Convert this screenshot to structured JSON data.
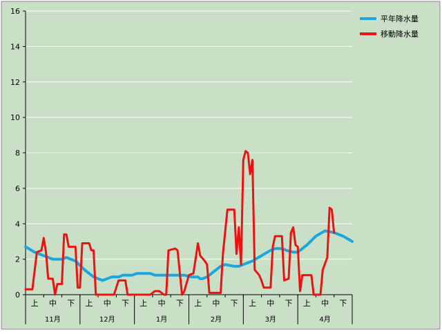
{
  "chart_data": {
    "type": "line",
    "ylim": [
      0,
      16
    ],
    "yticks": [
      "0",
      "2",
      "4",
      "6",
      "8",
      "10",
      "12",
      "14",
      "16"
    ],
    "grid": true,
    "legend_position": "top-right",
    "colors": {
      "background": "#c9dfc6",
      "grid": "#ffffff",
      "frame": "#8a8a8a"
    },
    "sub_ticks": [
      "上",
      "中",
      "下",
      "上",
      "中",
      "下",
      "上",
      "中",
      "下",
      "上",
      "中",
      "下",
      "上",
      "中",
      "下",
      "上",
      "中",
      "下"
    ],
    "month_labels": [
      "11月",
      "12月",
      "1月",
      "2月",
      "3月",
      "4月"
    ],
    "series": [
      {
        "name": "平年降水量",
        "color": "#1aa7e0",
        "points": [
          [
            0,
            2.7
          ],
          [
            4,
            2.4
          ],
          [
            8,
            2.2
          ],
          [
            12,
            2.0
          ],
          [
            16,
            2.0
          ],
          [
            18,
            2.1
          ],
          [
            22,
            1.9
          ],
          [
            26,
            1.4
          ],
          [
            30,
            1.0
          ],
          [
            32,
            0.9
          ],
          [
            34,
            0.8
          ],
          [
            36,
            0.9
          ],
          [
            38,
            1.0
          ],
          [
            41,
            1.0
          ],
          [
            43,
            1.1
          ],
          [
            47,
            1.1
          ],
          [
            49,
            1.2
          ],
          [
            55,
            1.2
          ],
          [
            57,
            1.1
          ],
          [
            65,
            1.1
          ],
          [
            70,
            1.1
          ],
          [
            73,
            1.0
          ],
          [
            76,
            1.0
          ],
          [
            77,
            0.9
          ],
          [
            78,
            0.9
          ],
          [
            80,
            1.0
          ],
          [
            82,
            1.2
          ],
          [
            86,
            1.6
          ],
          [
            88,
            1.7
          ],
          [
            92,
            1.6
          ],
          [
            94,
            1.6
          ],
          [
            96,
            1.7
          ],
          [
            100,
            1.9
          ],
          [
            104,
            2.2
          ],
          [
            108,
            2.5
          ],
          [
            110,
            2.6
          ],
          [
            113,
            2.6
          ],
          [
            115,
            2.5
          ],
          [
            118,
            2.4
          ],
          [
            120,
            2.4
          ],
          [
            124,
            2.8
          ],
          [
            128,
            3.3
          ],
          [
            132,
            3.6
          ],
          [
            136,
            3.5
          ],
          [
            140,
            3.3
          ],
          [
            144,
            3.0
          ]
        ]
      },
      {
        "name": "移動降水量",
        "color": "#ee1111",
        "points": [
          [
            0,
            0.3
          ],
          [
            3,
            0.3
          ],
          [
            5,
            2.4
          ],
          [
            7,
            2.5
          ],
          [
            8,
            3.2
          ],
          [
            9,
            2.4
          ],
          [
            10,
            0.9
          ],
          [
            12,
            0.9
          ],
          [
            13,
            0
          ],
          [
            14,
            0.6
          ],
          [
            16,
            0.6
          ],
          [
            17,
            3.4
          ],
          [
            18,
            3.4
          ],
          [
            19,
            2.7
          ],
          [
            22,
            2.7
          ],
          [
            23,
            0.4
          ],
          [
            24,
            0.4
          ],
          [
            25,
            2.9
          ],
          [
            28,
            2.9
          ],
          [
            29,
            2.5
          ],
          [
            30,
            2.5
          ],
          [
            31,
            0
          ],
          [
            39,
            0
          ],
          [
            41,
            0.8
          ],
          [
            44,
            0.8
          ],
          [
            45,
            0
          ],
          [
            55,
            0
          ],
          [
            57,
            0.2
          ],
          [
            59,
            0.2
          ],
          [
            61,
            0
          ],
          [
            62,
            0
          ],
          [
            63,
            2.5
          ],
          [
            66,
            2.6
          ],
          [
            67,
            2.5
          ],
          [
            69,
            0
          ],
          [
            70,
            0.2
          ],
          [
            72,
            1.1
          ],
          [
            74,
            1.2
          ],
          [
            76,
            2.9
          ],
          [
            77,
            2.2
          ],
          [
            79,
            1.9
          ],
          [
            80,
            1.7
          ],
          [
            81,
            0.1
          ],
          [
            86,
            0.1
          ],
          [
            87,
            2.3
          ],
          [
            89,
            4.8
          ],
          [
            92,
            4.8
          ],
          [
            93,
            2.3
          ],
          [
            94,
            3.8
          ],
          [
            95,
            1.7
          ],
          [
            96,
            7.6
          ],
          [
            97,
            8.1
          ],
          [
            98,
            8.0
          ],
          [
            99,
            6.8
          ],
          [
            100,
            7.6
          ],
          [
            101,
            1.4
          ],
          [
            103,
            1.1
          ],
          [
            104,
            0.8
          ],
          [
            105,
            0.4
          ],
          [
            108,
            0.4
          ],
          [
            109,
            2.7
          ],
          [
            110,
            3.3
          ],
          [
            113,
            3.3
          ],
          [
            114,
            0.8
          ],
          [
            116,
            0.9
          ],
          [
            117,
            3.5
          ],
          [
            118,
            3.8
          ],
          [
            119,
            2.8
          ],
          [
            120,
            2.7
          ],
          [
            121,
            0.2
          ],
          [
            122,
            1.1
          ],
          [
            126,
            1.1
          ],
          [
            127,
            0
          ],
          [
            130,
            0
          ],
          [
            131,
            1.4
          ],
          [
            133,
            2.1
          ],
          [
            134,
            4.9
          ],
          [
            135,
            4.8
          ],
          [
            136,
            3.5
          ]
        ]
      }
    ]
  }
}
